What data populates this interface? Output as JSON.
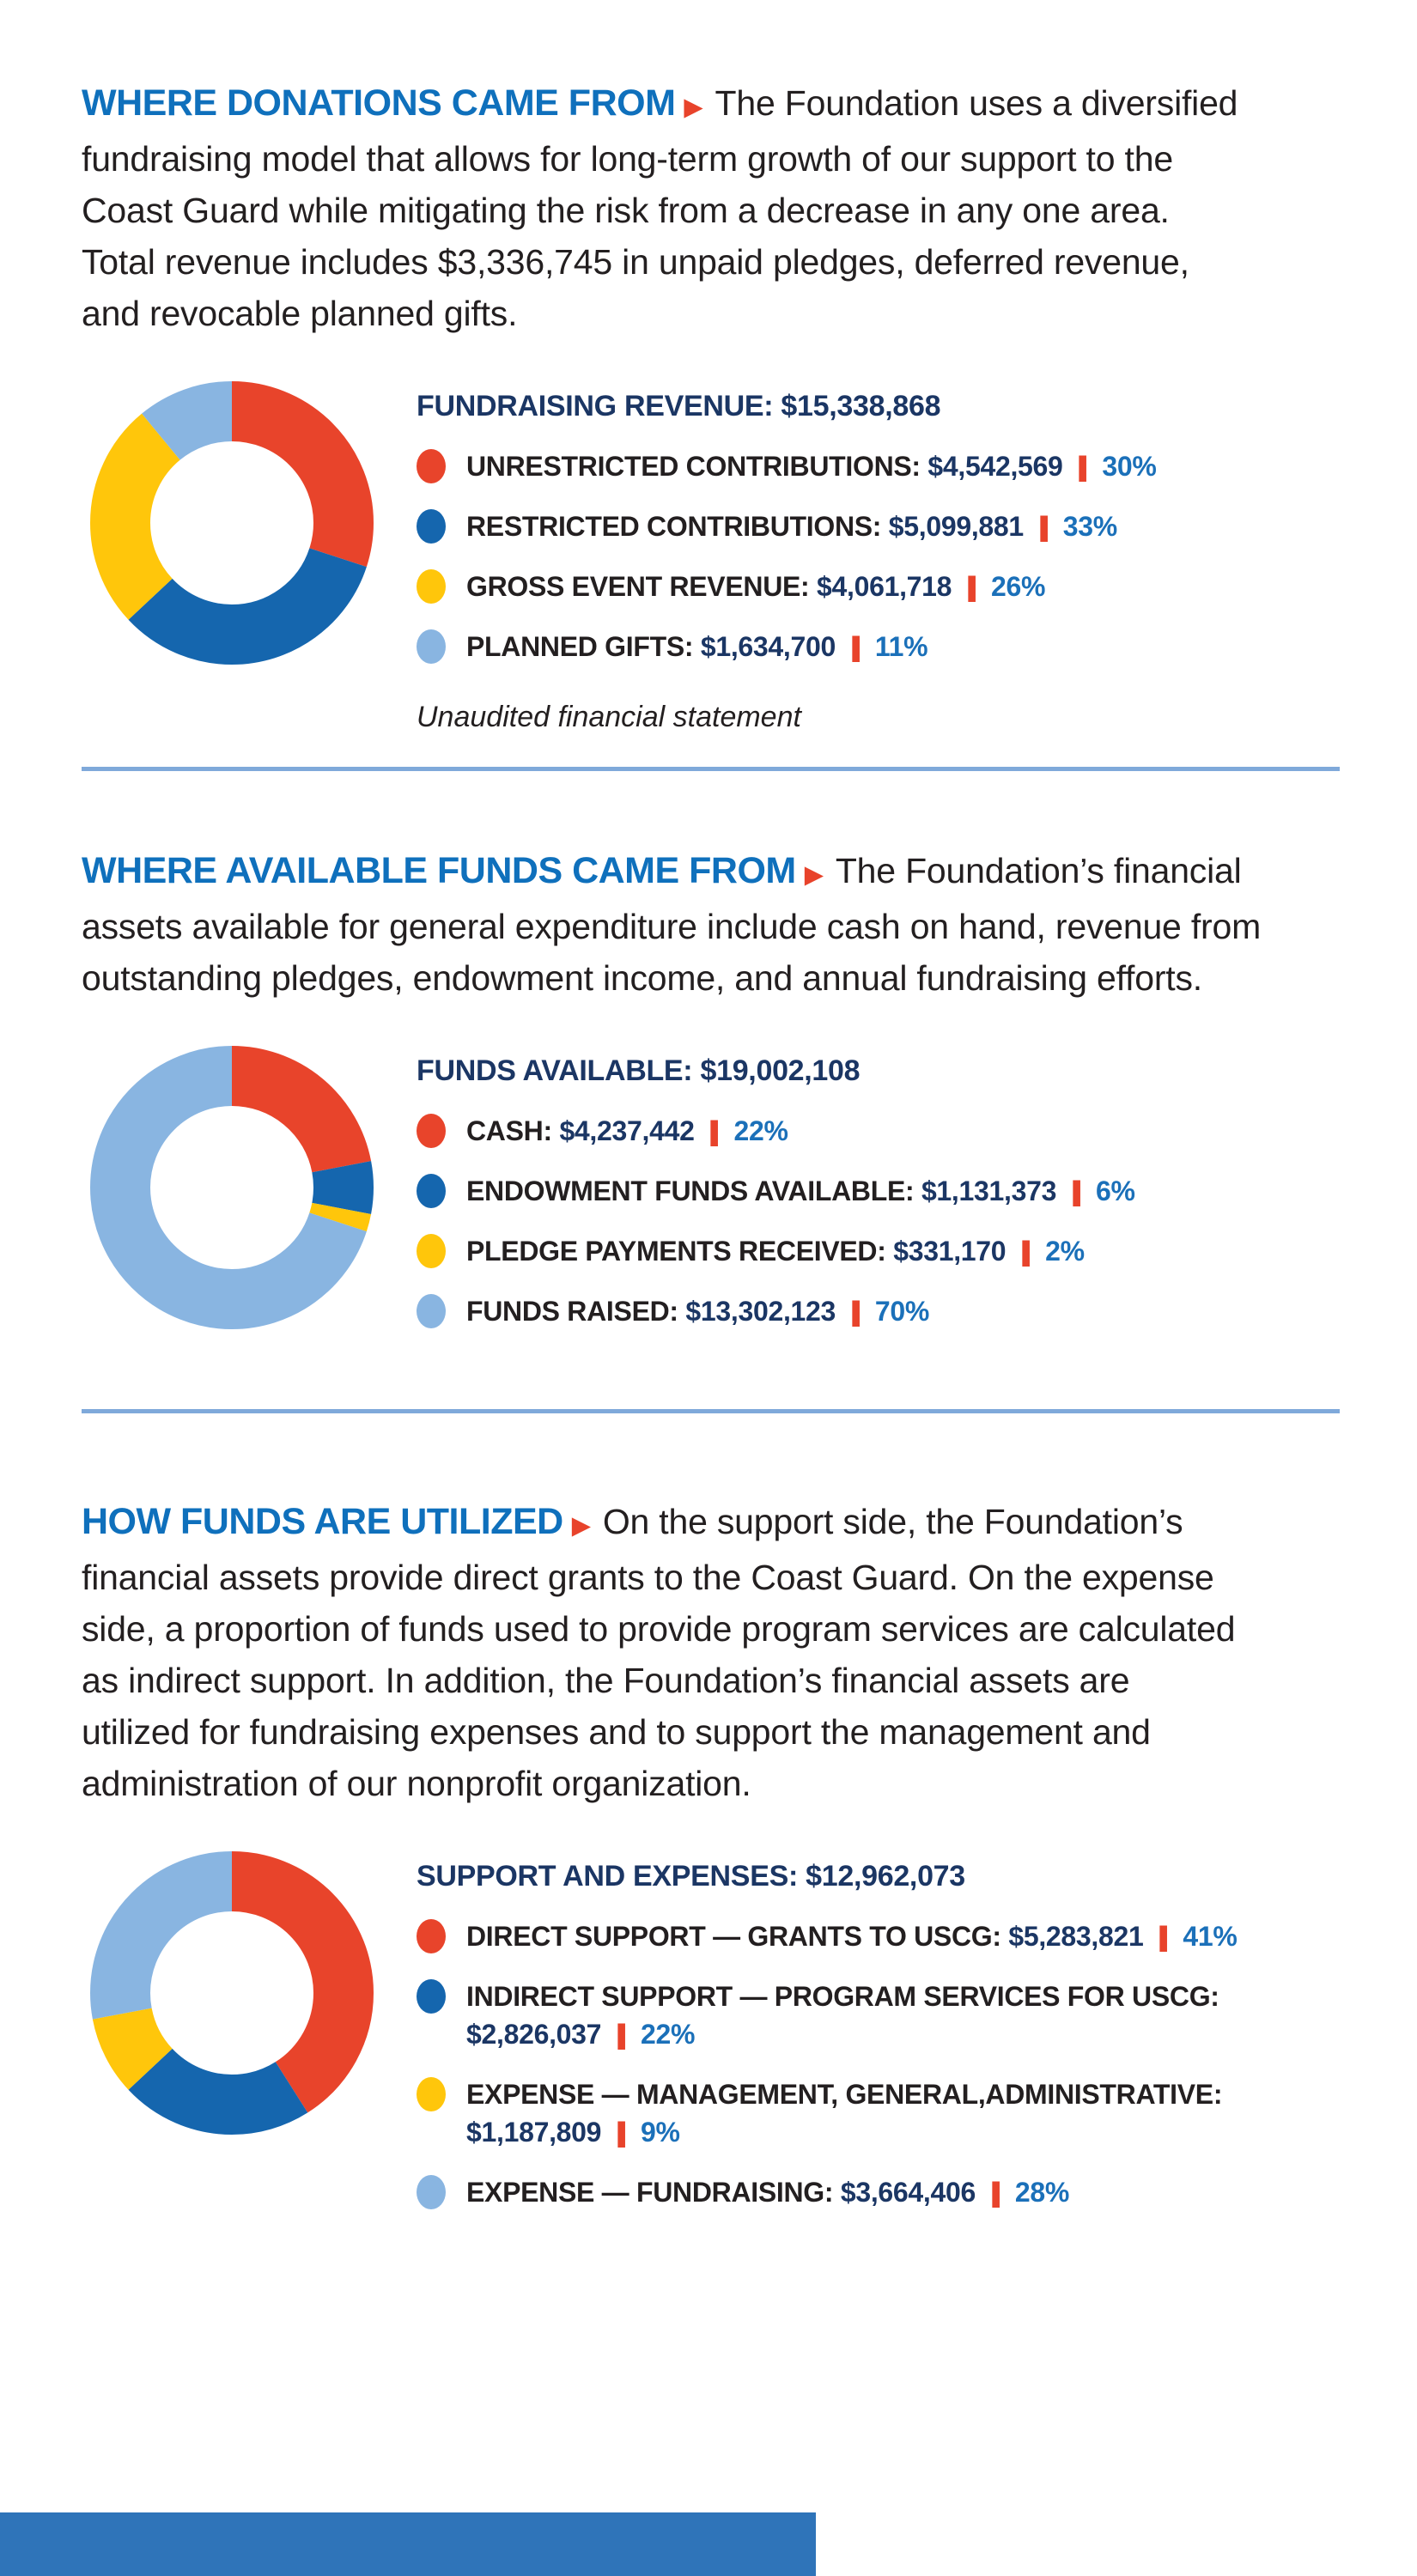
{
  "ui": {
    "separator": "|",
    "bullet_arrow": "▶"
  },
  "colors": {
    "heading_blue": "#0F70BC",
    "navy": "#1B3664",
    "percent_blue": "#1B70B9",
    "accent_red": "#E8432B",
    "body_text": "#231F20",
    "divider_blue": "#7FA9DA",
    "footer_blue": "#2F74B9",
    "slice_red": "#E8442B",
    "slice_blue": "#1566AE",
    "slice_yellow": "#FFC60B",
    "slice_lightblue": "#89B5E1"
  },
  "sections": [
    {
      "heading": "WHERE DONATIONS CAME FROM",
      "intro_lines": [
        "The Foundation uses a diversified",
        "fundraising model that allows for long-term growth of our support to the",
        "Coast Guard while mitigating the risk from a decrease in any one area.",
        "Total revenue includes $3,336,745 in unpaid pledges, deferred revenue,",
        "and revocable planned gifts."
      ],
      "total_label": "FUNDRAISING REVENUE:",
      "total_value": "$15,338,868",
      "note": "Unaudited financial statement",
      "items": [
        {
          "label": "UNRESTRICTED CONTRIBUTIONS:",
          "value": "$4,542,569",
          "percent": "30%",
          "color": "#E8442B",
          "two_line": false
        },
        {
          "label": "RESTRICTED CONTRIBUTIONS:",
          "value": "$5,099,881",
          "percent": "33%",
          "color": "#1566AE",
          "two_line": false
        },
        {
          "label": "GROSS EVENT REVENUE:",
          "value": "$4,061,718",
          "percent": "26%",
          "color": "#FFC60B",
          "two_line": false
        },
        {
          "label": "PLANNED GIFTS:",
          "value": "$1,634,700",
          "percent": "11%",
          "color": "#89B5E1",
          "two_line": false
        }
      ]
    },
    {
      "heading": "WHERE AVAILABLE FUNDS CAME FROM",
      "intro_lines": [
        "The Foundation’s financial",
        "assets available for general expenditure include cash on hand, revenue from",
        "outstanding pledges, endowment income, and annual fundraising efforts."
      ],
      "total_label": "FUNDS AVAILABLE:",
      "total_value": "$19,002,108",
      "note": "",
      "items": [
        {
          "label": "CASH:",
          "value": "$4,237,442",
          "percent": "22%",
          "color": "#E8442B",
          "two_line": false
        },
        {
          "label": "ENDOWMENT FUNDS AVAILABLE:",
          "value": "$1,131,373",
          "percent": "6%",
          "color": "#1566AE",
          "two_line": false
        },
        {
          "label": "PLEDGE PAYMENTS RECEIVED:",
          "value": "$331,170",
          "percent": "2%",
          "color": "#FFC60B",
          "two_line": false
        },
        {
          "label": "FUNDS RAISED:",
          "value": "$13,302,123",
          "percent": "70%",
          "color": "#89B5E1",
          "two_line": false
        }
      ]
    },
    {
      "heading": "HOW FUNDS ARE UTILIZED",
      "intro_lines": [
        "On the support side, the Foundation’s",
        "financial assets provide direct grants to the Coast Guard. On the expense",
        "side, a proportion of funds used to provide program services are calculated",
        "as indirect support. In addition, the Foundation’s financial assets are",
        "utilized for fundraising expenses and to support the management and",
        "administration of our nonprofit organization."
      ],
      "total_label": "SUPPORT AND EXPENSES:",
      "total_value": "$12,962,073",
      "note": "",
      "items": [
        {
          "label": "DIRECT SUPPORT — GRANTS TO USCG:",
          "value": "$5,283,821",
          "percent": "41%",
          "color": "#E8442B",
          "two_line": false
        },
        {
          "label": "INDIRECT SUPPORT — PROGRAM SERVICES FOR USCG:",
          "value": "$2,826,037",
          "percent": "22%",
          "color": "#1566AE",
          "two_line": true
        },
        {
          "label": "EXPENSE — MANAGEMENT, GENERAL,ADMINISTRATIVE:",
          "value": "$1,187,809",
          "percent": "9%",
          "color": "#FFC60B",
          "two_line": true
        },
        {
          "label": "EXPENSE — FUNDRAISING:",
          "value": "$3,664,406",
          "percent": "28%",
          "color": "#89B5E1",
          "two_line": false
        }
      ]
    }
  ],
  "chart_data": [
    {
      "type": "pie",
      "subtype": "donut",
      "title": "FUNDRAISING REVENUE: $15,338,868",
      "labels": [
        "UNRESTRICTED CONTRIBUTIONS",
        "RESTRICTED CONTRIBUTIONS",
        "GROSS EVENT REVENUE",
        "PLANNED GIFTS"
      ],
      "values": [
        4542569,
        5099881,
        4061718,
        1634700
      ],
      "percents": [
        30,
        33,
        26,
        11
      ],
      "colors": [
        "#E8442B",
        "#1566AE",
        "#FFC60B",
        "#89B5E1"
      ],
      "start_angle_deg": 0,
      "direction": "clockwise",
      "legend_position": "right",
      "annotation": "Unaudited financial statement"
    },
    {
      "type": "pie",
      "subtype": "donut",
      "title": "FUNDS AVAILABLE: $19,002,108",
      "labels": [
        "CASH",
        "ENDOWMENT FUNDS AVAILABLE",
        "PLEDGE PAYMENTS RECEIVED",
        "FUNDS RAISED"
      ],
      "values": [
        4237442,
        1131373,
        331170,
        13302123
      ],
      "percents": [
        22,
        6,
        2,
        70
      ],
      "colors": [
        "#E8442B",
        "#1566AE",
        "#FFC60B",
        "#89B5E1"
      ],
      "start_angle_deg": 0,
      "direction": "clockwise",
      "legend_position": "right"
    },
    {
      "type": "pie",
      "subtype": "donut",
      "title": "SUPPORT AND EXPENSES: $12,962,073",
      "labels": [
        "DIRECT SUPPORT — GRANTS TO USCG",
        "INDIRECT SUPPORT — PROGRAM SERVICES FOR USCG",
        "EXPENSE — MANAGEMENT, GENERAL, ADMINISTRATIVE",
        "EXPENSE — FUNDRAISING"
      ],
      "values": [
        5283821,
        2826037,
        1187809,
        3664406
      ],
      "percents": [
        41,
        22,
        9,
        28
      ],
      "colors": [
        "#E8442B",
        "#1566AE",
        "#FFC60B",
        "#89B5E1"
      ],
      "start_angle_deg": 0,
      "direction": "clockwise",
      "legend_position": "right"
    }
  ]
}
